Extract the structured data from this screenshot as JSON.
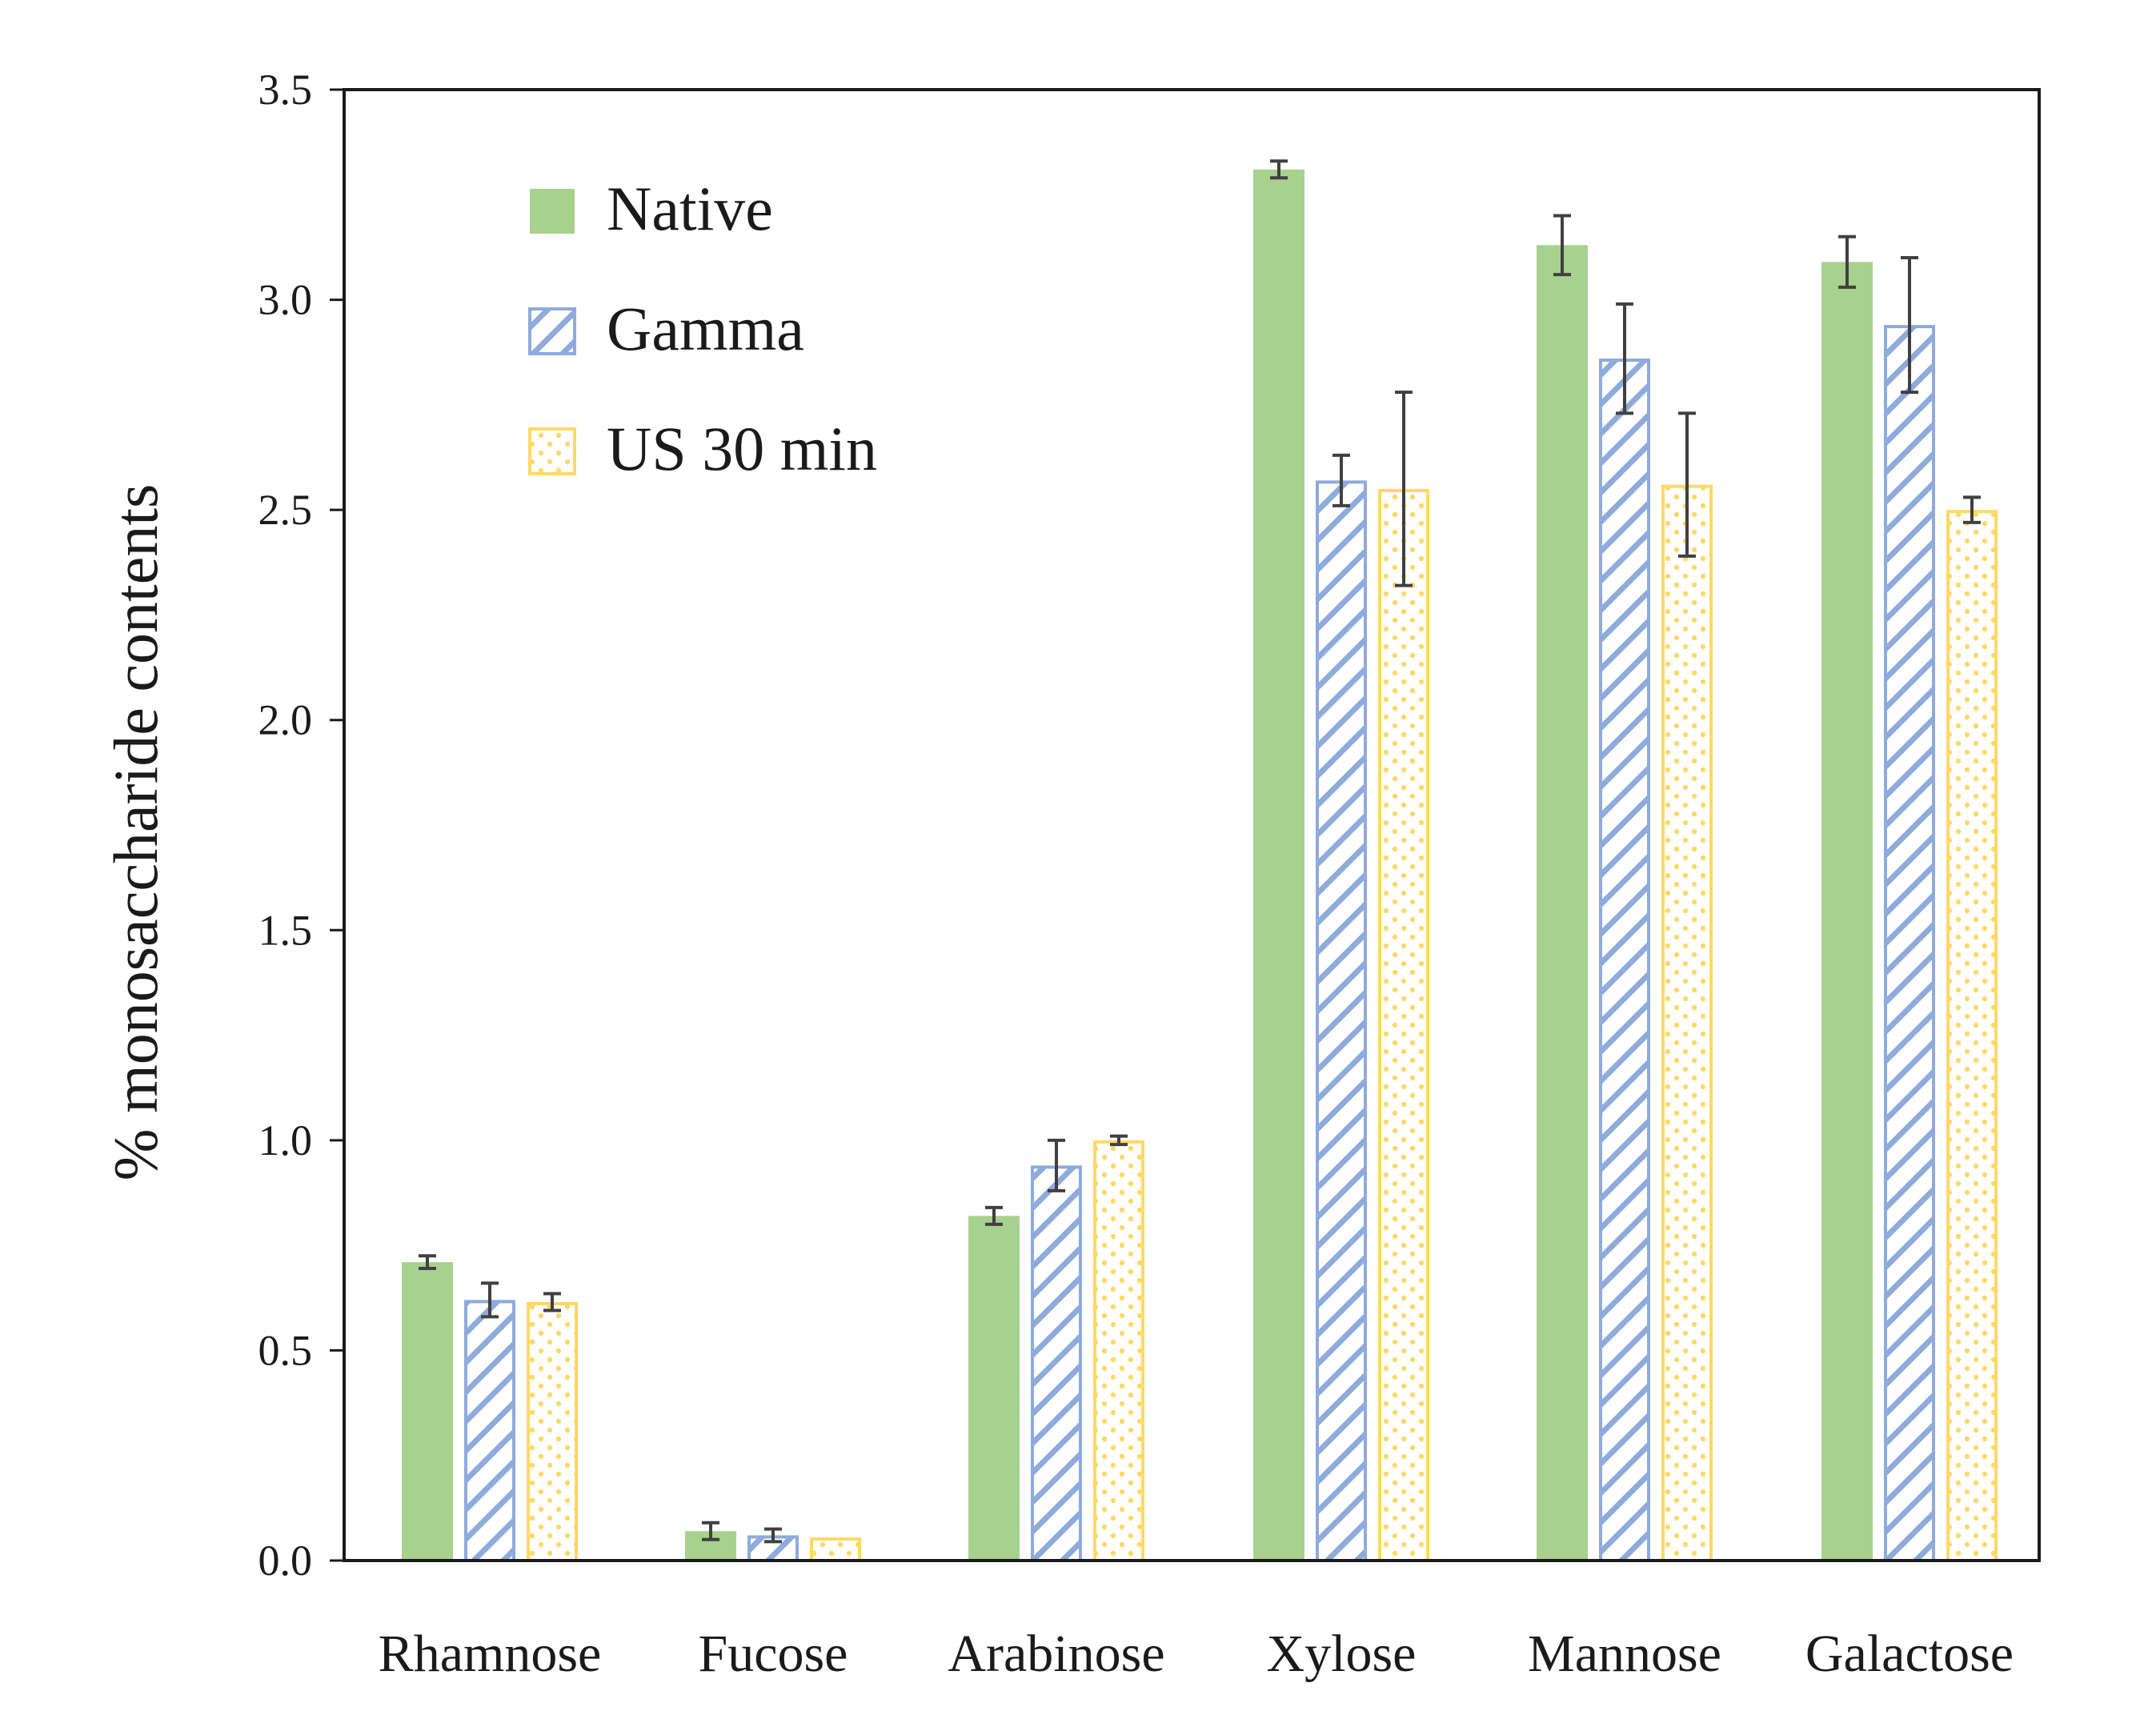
{
  "chart_data": {
    "type": "bar",
    "title": "",
    "xlabel": "",
    "ylabel": "% monosaccharide contents",
    "ylim": [
      0,
      3.5
    ],
    "yticks": [
      "0.0",
      "0.5",
      "1.0",
      "1.5",
      "2.0",
      "2.5",
      "3.0",
      "3.5"
    ],
    "grid": false,
    "legend_position": "top-left",
    "categories": [
      "Rhamnose",
      "Fucose",
      "Arabinose",
      "Xylose",
      "Mannose",
      "Galactose"
    ],
    "series": [
      {
        "name": "Native",
        "pattern": "solid",
        "fill_color": "#a9d18e",
        "values": [
          0.71,
          0.07,
          0.82,
          3.31,
          3.13,
          3.09
        ],
        "errors": [
          0.015,
          0.02,
          0.02,
          0.02,
          0.07,
          0.06
        ]
      },
      {
        "name": "Gamma",
        "pattern": "diagonal-stripes",
        "fill_color": "#8faadc",
        "values": [
          0.62,
          0.06,
          0.94,
          2.57,
          2.86,
          2.94
        ],
        "errors": [
          0.04,
          0.015,
          0.06,
          0.06,
          0.13,
          0.16
        ]
      },
      {
        "name": "US 30 min",
        "pattern": "dots",
        "fill_color": "#ffd966",
        "values": [
          0.615,
          0.055,
          1.0,
          2.55,
          2.56,
          2.5
        ],
        "errors": [
          0.02,
          0.0,
          0.01,
          0.23,
          0.17,
          0.03
        ]
      }
    ],
    "error_bar_color": "#404040"
  }
}
